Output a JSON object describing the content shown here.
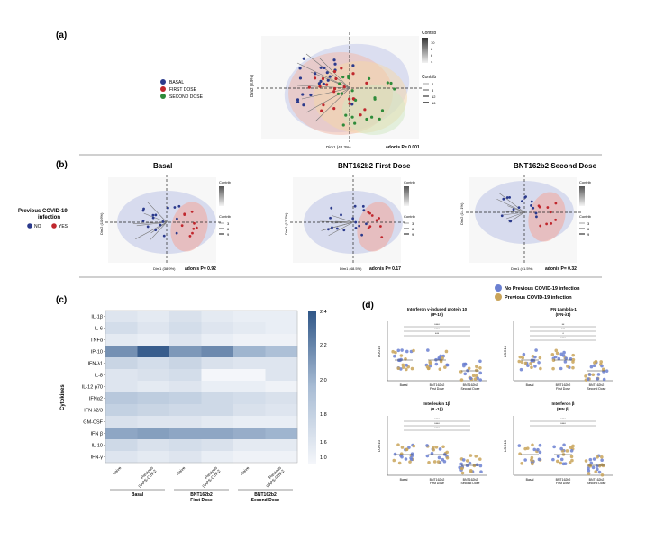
{
  "panels": {
    "a": {
      "label": "(a)",
      "legend": [
        "BASAL",
        "FIRST DOSE",
        "SECOND DOSE"
      ],
      "legend_colors": [
        "#2b3a8c",
        "#c0272d",
        "#2e8b3a"
      ],
      "contrib_title": "Contrib",
      "contrib_ticks": [
        "10",
        "8",
        "6",
        "4"
      ],
      "contrib_size_ticks": [
        "4",
        "8",
        "12",
        "16"
      ],
      "xlabel": "Dim1 (42.3%)",
      "ylabel": "Dim2 (8.9%)",
      "adonis": "adonis P= 0.001"
    },
    "b": {
      "label": "(b)",
      "group_title_line1": "Previous COVID-19",
      "group_title_line2": "infection",
      "group_no": "NO",
      "group_yes": "YES",
      "group_colors": [
        "#2b3a8c",
        "#c0272d"
      ],
      "subplots": [
        {
          "title": "Basal",
          "xlabel": "Dim1 (38.9%)",
          "ylabel": "Dim2 (10.6%)",
          "adonis": "adonis P= 0.92",
          "contrib_title": "Contrib",
          "size_ticks": [
            "3",
            "6",
            "9"
          ]
        },
        {
          "title": "BNT162b2 First Dose",
          "xlabel": "Dim1 (48.5%)",
          "ylabel": "Dim2 (12.7%)",
          "adonis": "adonis P= 0.17",
          "contrib_title": "Contrib",
          "size_ticks": [
            "3",
            "6",
            "9"
          ]
        },
        {
          "title": "BNT162b2 Second Dose",
          "xlabel": "Dim1 (41.5%)",
          "ylabel": "Dim2 (14.1%)",
          "adonis": "adonis P= 0.32",
          "contrib_title": "Contrib",
          "size_ticks": [
            "3",
            "6",
            "9"
          ]
        }
      ]
    },
    "c": {
      "label": "(c)",
      "ylabel": "Cytokines",
      "colorbar_ticks": [
        "2.4",
        "2.2",
        "2.0",
        "1.8",
        "1.6",
        "1.0"
      ],
      "x_groups": [
        "Basal",
        "BNT162b2\nFirst Dose",
        "BNT162b2\nSecond Dose"
      ],
      "x_columns": [
        "Naive",
        "Previous SARS-CoV-2",
        "Naive",
        "Previous SARS-CoV-2",
        "Naive",
        "Previous SARS-CoV-2"
      ]
    },
    "d": {
      "label": "(d)",
      "legend": [
        "No Previous COVID-19 infection",
        "Previous COVID-19 infection"
      ],
      "colors": [
        "#6b80d1",
        "#c9a45a"
      ],
      "subplots": [
        {
          "title_line1": "Interferon γ-induced protein 10",
          "title_line2": "(IP-10)",
          "ylabel": "LOG10",
          "xcats": [
            "Basal",
            "BNT162b2 First Dose",
            "BNT162b2 Second Dose"
          ],
          "sig": [
            "****",
            "****",
            "***"
          ]
        },
        {
          "title_line1": "IFN Lambda-1",
          "title_line2": "(IFN-λ1)",
          "ylabel": "LOG10",
          "xcats": [
            "Basal",
            "BNT162b2 First Dose",
            "BNT162b2 Second Dose"
          ],
          "sig": [
            "**",
            "***",
            "*",
            "****"
          ]
        },
        {
          "title_line1": "Interleukin 1β",
          "title_line2": "(IL-1β)",
          "ylabel": "LOG10",
          "xcats": [
            "Basal",
            "BNT162b2 First Dose",
            "BNT162b2 Second Dose"
          ],
          "sig": [
            "****",
            "****",
            "****"
          ]
        },
        {
          "title_line1": "Interferon β",
          "title_line2": "(IFN β)",
          "ylabel": "LOG10",
          "xcats": [
            "Basal",
            "BNT162b2 First Dose",
            "BNT162b2 Second Dose"
          ],
          "sig": [
            "****",
            "****"
          ]
        }
      ]
    }
  },
  "chart_data": [
    {
      "type": "heatmap",
      "panel": "(c)",
      "rows": [
        "IL-1β",
        "IL-6",
        "TNFα",
        "IP-10",
        "IFN-λ1",
        "IL-8",
        "IL-12 p70",
        "IFNα2",
        "IFN λ2/3",
        "GM-CSF",
        "IFN β",
        "IL-10",
        "IFN-γ"
      ],
      "columns": [
        "Basal Naive",
        "Basal Previous SARS-CoV-2",
        "First Dose Naive",
        "First Dose Previous SARS-CoV-2",
        "Second Dose Naive",
        "Second Dose Previous SARS-CoV-2"
      ],
      "values": [
        [
          1.2,
          1.15,
          1.25,
          1.15,
          1.1,
          1.1
        ],
        [
          1.3,
          1.2,
          1.3,
          1.2,
          1.15,
          1.1
        ],
        [
          1.15,
          1.1,
          1.2,
          1.1,
          1.05,
          1.05
        ],
        [
          2.0,
          2.35,
          1.95,
          2.05,
          1.75,
          1.65
        ],
        [
          1.4,
          1.3,
          1.4,
          1.25,
          1.2,
          1.2
        ],
        [
          1.2,
          1.25,
          1.3,
          1.0,
          1.0,
          1.2
        ],
        [
          1.2,
          1.15,
          1.2,
          1.1,
          1.1,
          1.05
        ],
        [
          1.55,
          1.5,
          1.45,
          1.35,
          1.3,
          1.25
        ],
        [
          1.45,
          1.4,
          1.35,
          1.35,
          1.25,
          1.2
        ],
        [
          1.25,
          1.2,
          1.2,
          1.15,
          1.1,
          1.1
        ],
        [
          1.85,
          1.9,
          1.85,
          1.85,
          1.8,
          1.75
        ],
        [
          1.35,
          1.25,
          1.3,
          1.25,
          1.15,
          1.15
        ],
        [
          1.2,
          1.15,
          1.2,
          1.1,
          1.05,
          1.05
        ]
      ],
      "colorbar_range": [
        1.0,
        2.4
      ]
    }
  ]
}
